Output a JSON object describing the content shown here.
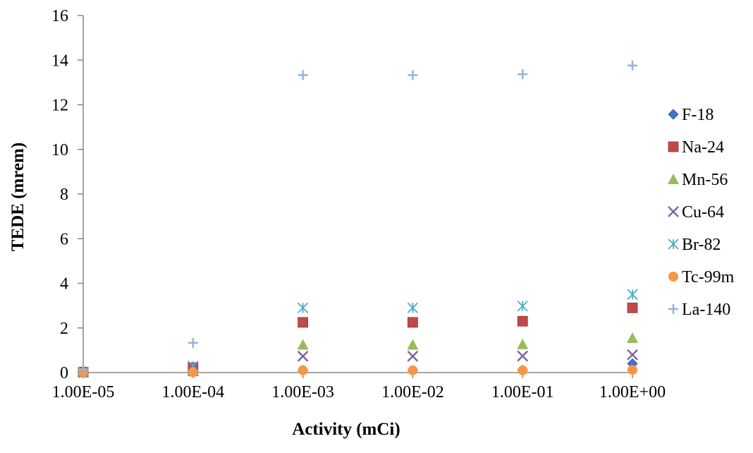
{
  "chart_data": {
    "type": "scatter",
    "title": "",
    "xlabel": "Activity (mCi)",
    "ylabel": "TEDE (mrem)",
    "x_scale": "log",
    "x_ticks": [
      "1.00E-05",
      "1.00E-04",
      "1.00E-03",
      "1.00E-02",
      "1.00E-01",
      "1.00E+00"
    ],
    "x": [
      1e-05,
      0.0001,
      0.001,
      0.01,
      0.1,
      1
    ],
    "ylim": [
      0,
      16
    ],
    "y_ticks": [
      "0",
      "2",
      "4",
      "6",
      "8",
      "10",
      "12",
      "14",
      "16"
    ],
    "grid": false,
    "legend_position": "right",
    "series": [
      {
        "name": "F-18",
        "marker": "diamond",
        "color": "#4472c4",
        "values": [
          0.0,
          0.02,
          0.1,
          0.1,
          0.11,
          0.4
        ]
      },
      {
        "name": "Na-24",
        "marker": "square",
        "color": "#be4b48",
        "values": [
          0.02,
          0.22,
          2.25,
          2.25,
          2.3,
          2.9
        ]
      },
      {
        "name": "Mn-56",
        "marker": "triangle",
        "color": "#9bbb59",
        "values": [
          0.01,
          0.12,
          1.25,
          1.25,
          1.27,
          1.55
        ]
      },
      {
        "name": "Cu-64",
        "marker": "x",
        "color": "#8064a2",
        "values": [
          0.01,
          0.07,
          0.73,
          0.73,
          0.74,
          0.8
        ]
      },
      {
        "name": "Br-82",
        "marker": "star",
        "color": "#4bacc6",
        "values": [
          0.03,
          0.29,
          2.9,
          2.9,
          2.98,
          3.5
        ]
      },
      {
        "name": "Tc-99m",
        "marker": "circle",
        "color": "#f79646",
        "values": [
          0.0,
          0.01,
          0.1,
          0.1,
          0.1,
          0.12
        ]
      },
      {
        "name": "La-140",
        "marker": "plus",
        "color": "#95b3d7",
        "values": [
          0.13,
          1.33,
          13.33,
          13.33,
          13.37,
          13.76
        ]
      }
    ]
  }
}
